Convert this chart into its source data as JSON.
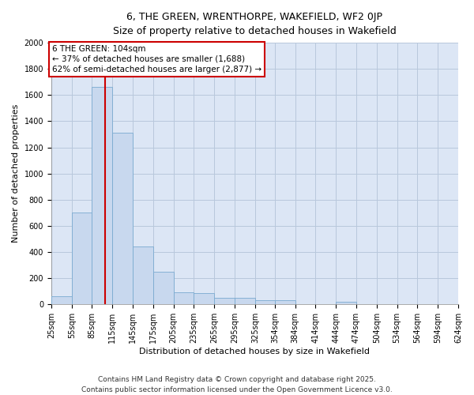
{
  "title_line1": "6, THE GREEN, WRENTHORPE, WAKEFIELD, WF2 0JP",
  "title_line2": "Size of property relative to detached houses in Wakefield",
  "xlabel": "Distribution of detached houses by size in Wakefield",
  "ylabel": "Number of detached properties",
  "bar_color": "#c8d8ee",
  "bar_edge_color": "#7aaad0",
  "background_color": "#dce6f5",
  "vline_x": 104,
  "vline_color": "#cc0000",
  "annotation_text": "6 THE GREEN: 104sqm\n← 37% of detached houses are smaller (1,688)\n62% of semi-detached houses are larger (2,877) →",
  "annotation_box_color": "#ffffff",
  "annotation_box_edge": "#cc0000",
  "bin_edges": [
    25,
    55,
    85,
    115,
    145,
    175,
    205,
    235,
    265,
    295,
    325,
    354,
    384,
    414,
    444,
    474,
    504,
    534,
    564,
    594,
    624
  ],
  "bar_heights": [
    65,
    700,
    1660,
    1310,
    445,
    252,
    95,
    85,
    50,
    50,
    30,
    30,
    0,
    0,
    20,
    0,
    0,
    0,
    0,
    0
  ],
  "ylim": [
    0,
    2000
  ],
  "yticks": [
    0,
    200,
    400,
    600,
    800,
    1000,
    1200,
    1400,
    1600,
    1800,
    2000
  ],
  "footer_line1": "Contains HM Land Registry data © Crown copyright and database right 2025.",
  "footer_line2": "Contains public sector information licensed under the Open Government Licence v3.0.",
  "grid_color": "#b8c8dc",
  "title_fontsize": 9,
  "axis_label_fontsize": 8,
  "tick_fontsize": 7,
  "footer_fontsize": 6.5,
  "annotation_fontsize": 7.5
}
